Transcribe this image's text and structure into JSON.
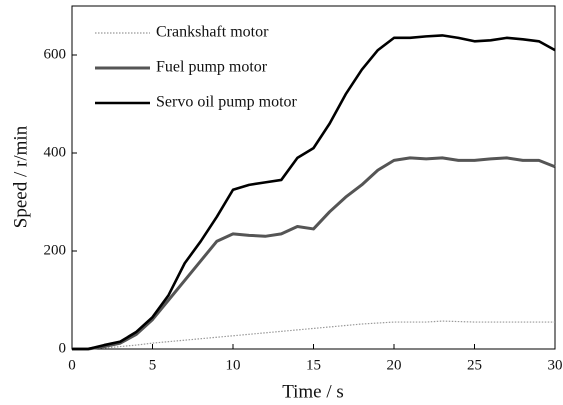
{
  "chart_data": {
    "type": "line",
    "xlabel": "Time / s",
    "ylabel": "Speed / r/min",
    "x": [
      0,
      1,
      2,
      3,
      4,
      5,
      6,
      7,
      8,
      9,
      10,
      11,
      12,
      13,
      14,
      15,
      16,
      17,
      18,
      19,
      20,
      21,
      22,
      23,
      24,
      25,
      26,
      27,
      28,
      29,
      30
    ],
    "series": [
      {
        "name": "Crankshaft motor",
        "color": "#999999",
        "style": "dotted",
        "values": [
          0,
          0,
          2,
          5,
          8,
          12,
          15,
          18,
          21,
          24,
          27,
          30,
          33,
          36,
          39,
          42,
          45,
          48,
          51,
          53,
          55,
          55,
          55,
          57,
          56,
          55,
          55,
          55,
          55,
          55,
          55
        ]
      },
      {
        "name": "Fuel pump motor",
        "color": "#555555",
        "style": "solid",
        "values": [
          0,
          0,
          5,
          12,
          30,
          60,
          100,
          140,
          180,
          220,
          235,
          232,
          230,
          235,
          250,
          245,
          280,
          310,
          335,
          365,
          385,
          390,
          388,
          390,
          385,
          385,
          388,
          390,
          385,
          385,
          372
        ]
      },
      {
        "name": "Servo oil pump motor",
        "color": "#000000",
        "style": "solid",
        "values": [
          0,
          0,
          8,
          15,
          35,
          65,
          110,
          175,
          220,
          270,
          325,
          335,
          340,
          345,
          390,
          410,
          460,
          520,
          570,
          610,
          635,
          635,
          638,
          640,
          635,
          628,
          630,
          635,
          632,
          628,
          610
        ]
      }
    ],
    "xlim": [
      0,
      30
    ],
    "xticks": [
      0,
      5,
      10,
      15,
      20,
      25,
      30
    ],
    "ylim": [
      0,
      700
    ],
    "yticks": [
      0,
      200,
      400,
      600
    ]
  }
}
